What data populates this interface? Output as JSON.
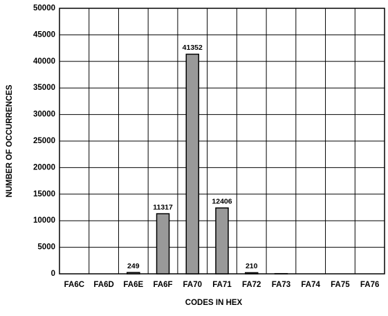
{
  "chart_data": {
    "type": "bar",
    "xlabel": "CODES IN HEX",
    "ylabel": "NUMBER OF OCCURRENCES",
    "categories": [
      "FA6C",
      "FA6D",
      "FA6E",
      "FA6F",
      "FA70",
      "FA71",
      "FA72",
      "FA73",
      "FA74",
      "FA75",
      "FA76"
    ],
    "values": [
      0,
      0,
      249,
      11317,
      41352,
      12406,
      210,
      40,
      0,
      0,
      0
    ],
    "value_labels": [
      null,
      null,
      "249",
      "11317",
      "41352",
      "12406",
      "210",
      null,
      null,
      null,
      null
    ],
    "color": "#999999",
    "ylim": [
      0,
      50000
    ],
    "yticks": [
      0,
      5000,
      10000,
      15000,
      20000,
      25000,
      30000,
      35000,
      40000,
      45000,
      50000
    ],
    "grid": true
  }
}
